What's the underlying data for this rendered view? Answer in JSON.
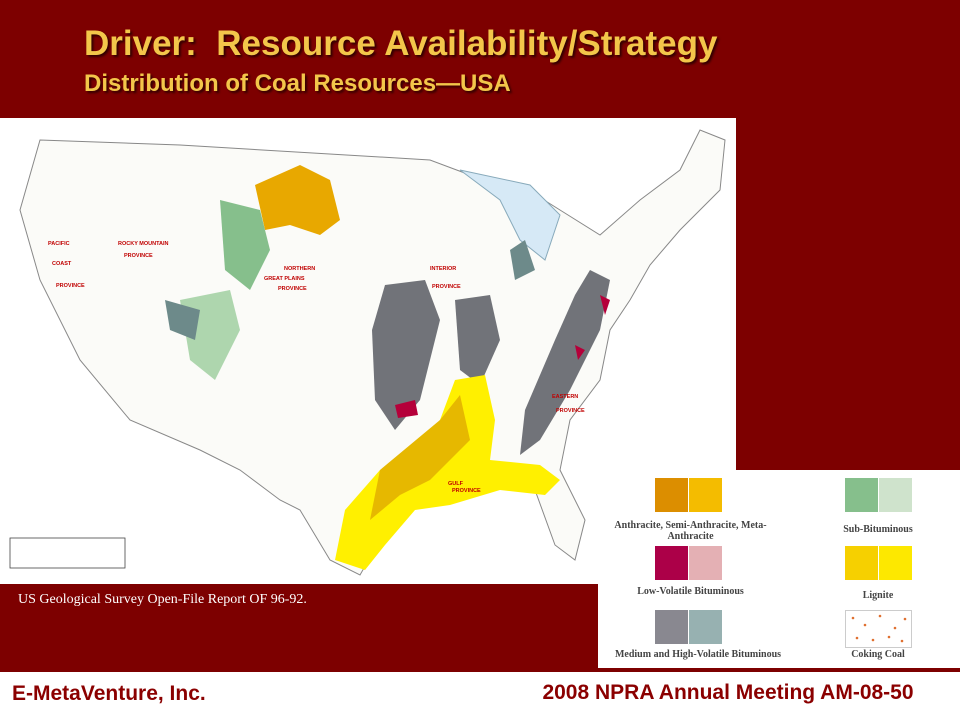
{
  "header": {
    "title": "Driver:  Resource Availability/Strategy",
    "subtitle": "Distribution of Coal Resources—USA"
  },
  "map": {
    "provinces": [
      {
        "lines": [
          "PACIFIC",
          "COAST",
          "PROVINCE"
        ]
      },
      {
        "lines": [
          "ROCKY MOUNTAIN",
          "PROVINCE"
        ]
      },
      {
        "lines": [
          "NORTHERN",
          "GREAT PLAINS",
          "PROVINCE"
        ]
      },
      {
        "lines": [
          "INTERIOR",
          "PROVINCE"
        ]
      },
      {
        "lines": [
          "EASTERN",
          "PROVINCE"
        ]
      },
      {
        "lines": [
          "GULF",
          "PROVINCE"
        ]
      }
    ]
  },
  "legend": {
    "items": [
      {
        "label": "Anthracite, Semi-Anthracite, Meta-Anthracite"
      },
      {
        "label": "Low-Volatile Bituminous"
      },
      {
        "label": "Medium and High-Volatile Bituminous"
      },
      {
        "label": "Sub-Bituminous"
      },
      {
        "label": "Lignite"
      },
      {
        "label": "Coking Coal"
      }
    ]
  },
  "source": "US Geological Survey Open-File Report OF 96-92.",
  "footer": {
    "left": "E-MetaVenture, Inc.",
    "right": "2008 NPRA Annual Meeting AM-08-50"
  }
}
